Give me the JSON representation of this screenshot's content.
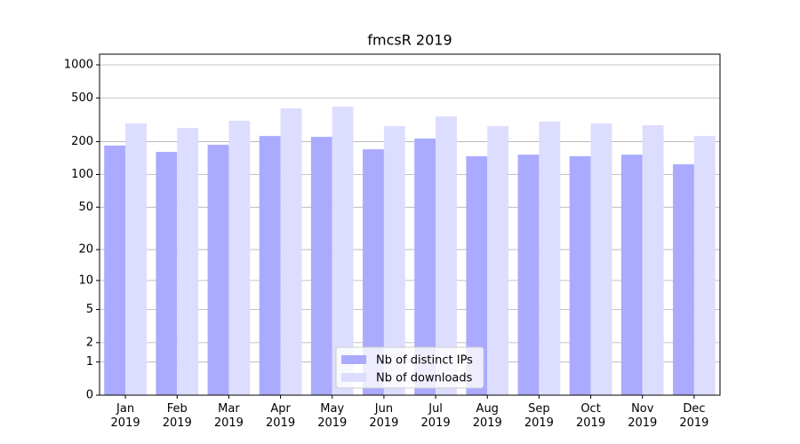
{
  "chart_data": {
    "type": "bar",
    "title": "fmcsR 2019",
    "categories": [
      "Jan 2019",
      "Feb 2019",
      "Mar 2019",
      "Apr 2019",
      "May 2019",
      "Jun 2019",
      "Jul 2019",
      "Aug 2019",
      "Sep 2019",
      "Oct 2019",
      "Nov 2019",
      "Dec 2019"
    ],
    "series": [
      {
        "name": "Nb of distinct IPs",
        "color": "#aaaaff",
        "values": [
          184,
          161,
          187,
          225,
          221,
          170,
          213,
          147,
          152,
          147,
          152,
          124
        ]
      },
      {
        "name": "Nb of downloads",
        "color": "#ddddff",
        "values": [
          293,
          266,
          310,
          402,
          417,
          277,
          339,
          277,
          304,
          293,
          282,
          225
        ]
      }
    ],
    "yscale": "log1p",
    "ylim": [
      0,
      1250
    ],
    "yticks": [
      0,
      1,
      2,
      5,
      10,
      20,
      50,
      100,
      200,
      500,
      1000
    ],
    "grid": true,
    "legend": "lower center"
  }
}
